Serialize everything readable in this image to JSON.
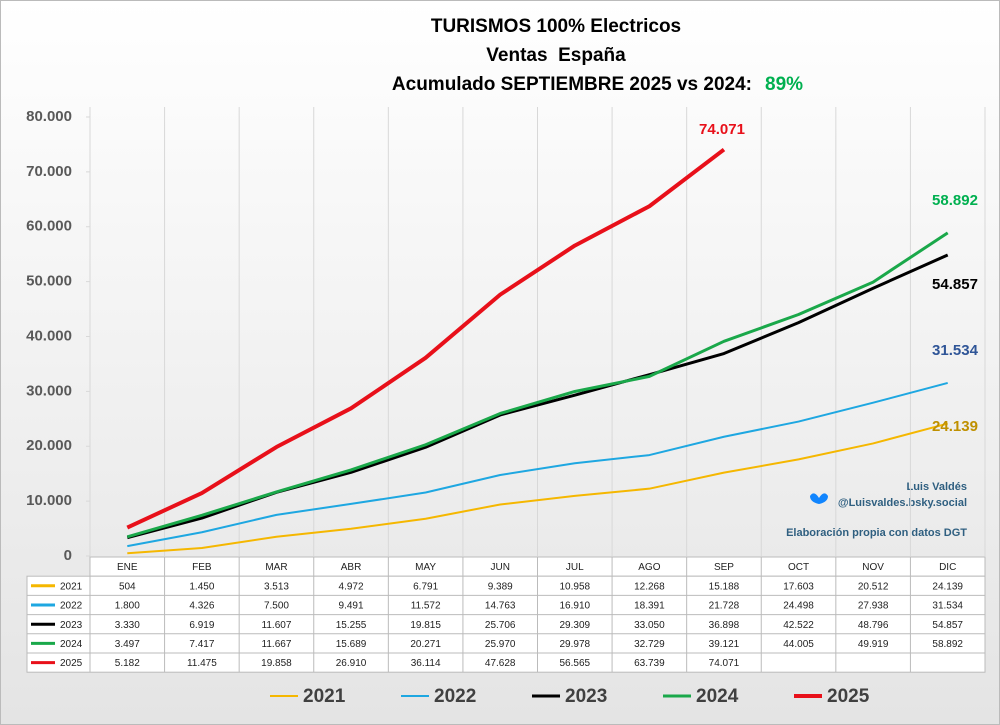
{
  "chart_data": {
    "type": "line",
    "title": "TURISMOS 100% Electricos",
    "subtitle": "Ventas  España",
    "subtitle2": "Acumulado SEPTIEMBRE 2025 vs 2024:",
    "growth": "89%",
    "annotations": [
      "Luis Valdés",
      "@Luisvaldes.bsky.social",
      "Elaboración propia con datos DGT"
    ],
    "categories": [
      "ENE",
      "FEB",
      "MAR",
      "ABR",
      "MAY",
      "JUN",
      "JUL",
      "AGO",
      "SEP",
      "OCT",
      "NOV",
      "DIC"
    ],
    "ylim": [
      0,
      80000
    ],
    "yticks": [
      0,
      {
        "value": 10000,
        "label": "10.000"
      },
      {
        "value": 20000,
        "label": "20.000"
      },
      {
        "value": 30000,
        "label": "30.000"
      },
      {
        "value": 40000,
        "label": "40.000"
      },
      {
        "value": 50000,
        "label": "50.000"
      },
      {
        "value": 60000,
        "label": "60.000"
      },
      {
        "value": 70000,
        "label": "70.000"
      },
      {
        "value": 80000,
        "label": "80.000"
      }
    ],
    "grid": false,
    "legend": "bottom",
    "series": [
      {
        "name": "2021",
        "color": "#f5b700",
        "label_color": "#bf9000",
        "width": 2,
        "values": [
          504,
          1450,
          3513,
          4972,
          6791,
          9389,
          10958,
          12268,
          15188,
          17603,
          20512,
          24139
        ],
        "value_labels": [
          "504",
          "1.450",
          "3.513",
          "4.972",
          "6.791",
          "9.389",
          "10.958",
          "12.268",
          "15.188",
          "17.603",
          "20.512",
          "24.139"
        ]
      },
      {
        "name": "2022",
        "color": "#1ea7e1",
        "label_color": "#2f5597",
        "width": 2,
        "values": [
          1800,
          4326,
          7500,
          9491,
          11572,
          14763,
          16910,
          18391,
          21728,
          24498,
          27938,
          31534
        ],
        "value_labels": [
          "1.800",
          "4.326",
          "7.500",
          "9.491",
          "11.572",
          "14.763",
          "16.910",
          "18.391",
          "21.728",
          "24.498",
          "27.938",
          "31.534"
        ]
      },
      {
        "name": "2023",
        "color": "#000000",
        "label_color": "#000000",
        "width": 3,
        "values": [
          3330,
          6919,
          11607,
          15255,
          19815,
          25706,
          29309,
          33050,
          36898,
          42522,
          48796,
          54857
        ],
        "value_labels": [
          "3.330",
          "6.919",
          "11.607",
          "15.255",
          "19.815",
          "25.706",
          "29.309",
          "33.050",
          "36.898",
          "42.522",
          "48.796",
          "54.857"
        ]
      },
      {
        "name": "2024",
        "color": "#1aa84a",
        "label_color": "#00b050",
        "width": 3,
        "values": [
          3497,
          7417,
          11667,
          15689,
          20271,
          25970,
          29978,
          32729,
          39121,
          44005,
          49919,
          58892
        ],
        "value_labels": [
          "3.497",
          "7.417",
          "11.667",
          "15.689",
          "20.271",
          "25.970",
          "29.978",
          "32.729",
          "39.121",
          "44.005",
          "49.919",
          "58.892"
        ]
      },
      {
        "name": "2025",
        "color": "#e8101a",
        "label_color": "#e8101a",
        "width": 4,
        "values": [
          5182,
          11475,
          19858,
          26910,
          36114,
          47628,
          56565,
          63739,
          74071,
          null,
          null,
          null
        ],
        "value_labels": [
          "5.182",
          "11.475",
          "19.858",
          "26.910",
          "36.114",
          "47.628",
          "56.565",
          "63.739",
          "74.071",
          null,
          null,
          null
        ]
      }
    ]
  }
}
